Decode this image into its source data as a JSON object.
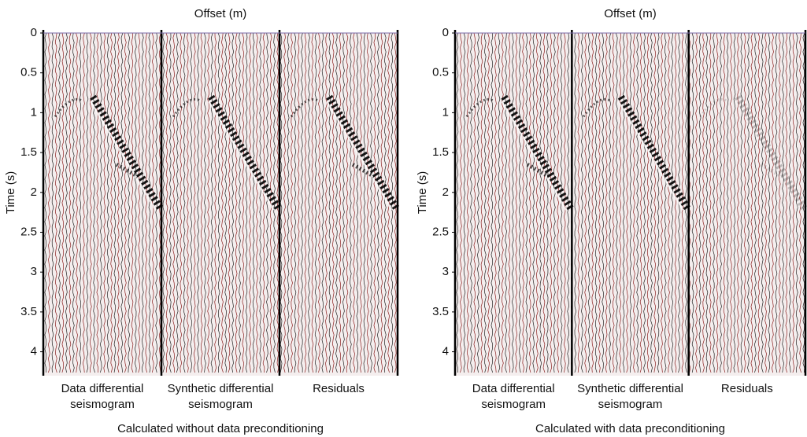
{
  "chart_data": [
    {
      "type": "seismogram",
      "xlabel": "Offset (m)",
      "ylabel": "Time (s)",
      "ylim": [
        0,
        4.3
      ],
      "yticks": [
        0,
        0.5,
        1,
        1.5,
        2,
        2.5,
        3,
        3.5,
        4
      ],
      "panels": [
        [
          "Data differential",
          "seismogram"
        ],
        [
          "Synthetic differential",
          "seismogram"
        ],
        [
          "Residuals"
        ]
      ],
      "caption": "Calculated without data preconditioning"
    },
    {
      "type": "seismogram",
      "xlabel": "Offset (m)",
      "ylabel": "Time (s)",
      "ylim": [
        0,
        4.3
      ],
      "yticks": [
        0,
        0.5,
        1,
        1.5,
        2,
        2.5,
        3,
        3.5,
        4
      ],
      "panels": [
        [
          "Data differential",
          "seismogram"
        ],
        [
          "Synthetic differential",
          "seismogram"
        ],
        [
          "Residuals"
        ]
      ],
      "caption": "Calculated with data preconditioning"
    }
  ]
}
